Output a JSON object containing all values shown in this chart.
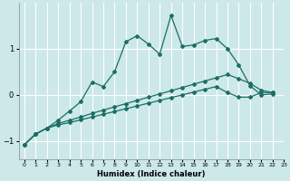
{
  "xlabel": "Humidex (Indice chaleur)",
  "background_color": "#cce8e8",
  "grid_color": "#ffffff",
  "line_color": "#1a6e64",
  "s1_x": [
    0,
    1,
    2,
    3,
    4,
    5,
    6,
    7,
    8,
    9,
    10,
    11,
    12,
    13,
    14,
    15,
    16,
    17,
    18,
    19,
    20,
    21,
    22
  ],
  "s1_y": [
    -1.08,
    -0.85,
    -0.72,
    -0.55,
    -0.35,
    -0.15,
    0.28,
    0.18,
    0.5,
    1.15,
    1.28,
    1.1,
    0.88,
    1.72,
    1.05,
    1.08,
    1.18,
    1.22,
    1.0,
    0.65,
    0.2,
    0.0,
    0.02
  ],
  "s2_x": [
    0,
    1,
    2,
    3,
    4,
    5,
    6,
    7,
    8,
    9,
    10,
    11,
    12,
    13,
    14,
    15,
    16,
    17,
    18,
    19,
    20,
    21,
    22
  ],
  "s2_y": [
    -1.08,
    -0.85,
    -0.72,
    -0.62,
    -0.55,
    -0.48,
    -0.4,
    -0.33,
    -0.26,
    -0.19,
    -0.12,
    -0.05,
    0.02,
    0.09,
    0.16,
    0.23,
    0.3,
    0.37,
    0.44,
    0.35,
    0.25,
    0.1,
    0.05
  ],
  "s3_x": [
    0,
    1,
    2,
    3,
    4,
    5,
    6,
    7,
    8,
    9,
    10,
    11,
    12,
    13,
    14,
    15,
    16,
    17,
    18,
    19,
    20,
    21,
    22
  ],
  "s3_y": [
    -1.08,
    -0.85,
    -0.72,
    -0.65,
    -0.6,
    -0.54,
    -0.48,
    -0.42,
    -0.36,
    -0.3,
    -0.24,
    -0.18,
    -0.12,
    -0.06,
    0.0,
    0.06,
    0.12,
    0.18,
    0.05,
    -0.05,
    -0.05,
    0.05,
    0.05
  ],
  "ylim": [
    -1.4,
    2.0
  ],
  "xlim": [
    -0.5,
    23
  ],
  "yticks": [
    -1,
    0,
    1
  ],
  "xticks": [
    0,
    1,
    2,
    3,
    4,
    5,
    6,
    7,
    8,
    9,
    10,
    11,
    12,
    13,
    14,
    15,
    16,
    17,
    18,
    19,
    20,
    21,
    22,
    23
  ]
}
